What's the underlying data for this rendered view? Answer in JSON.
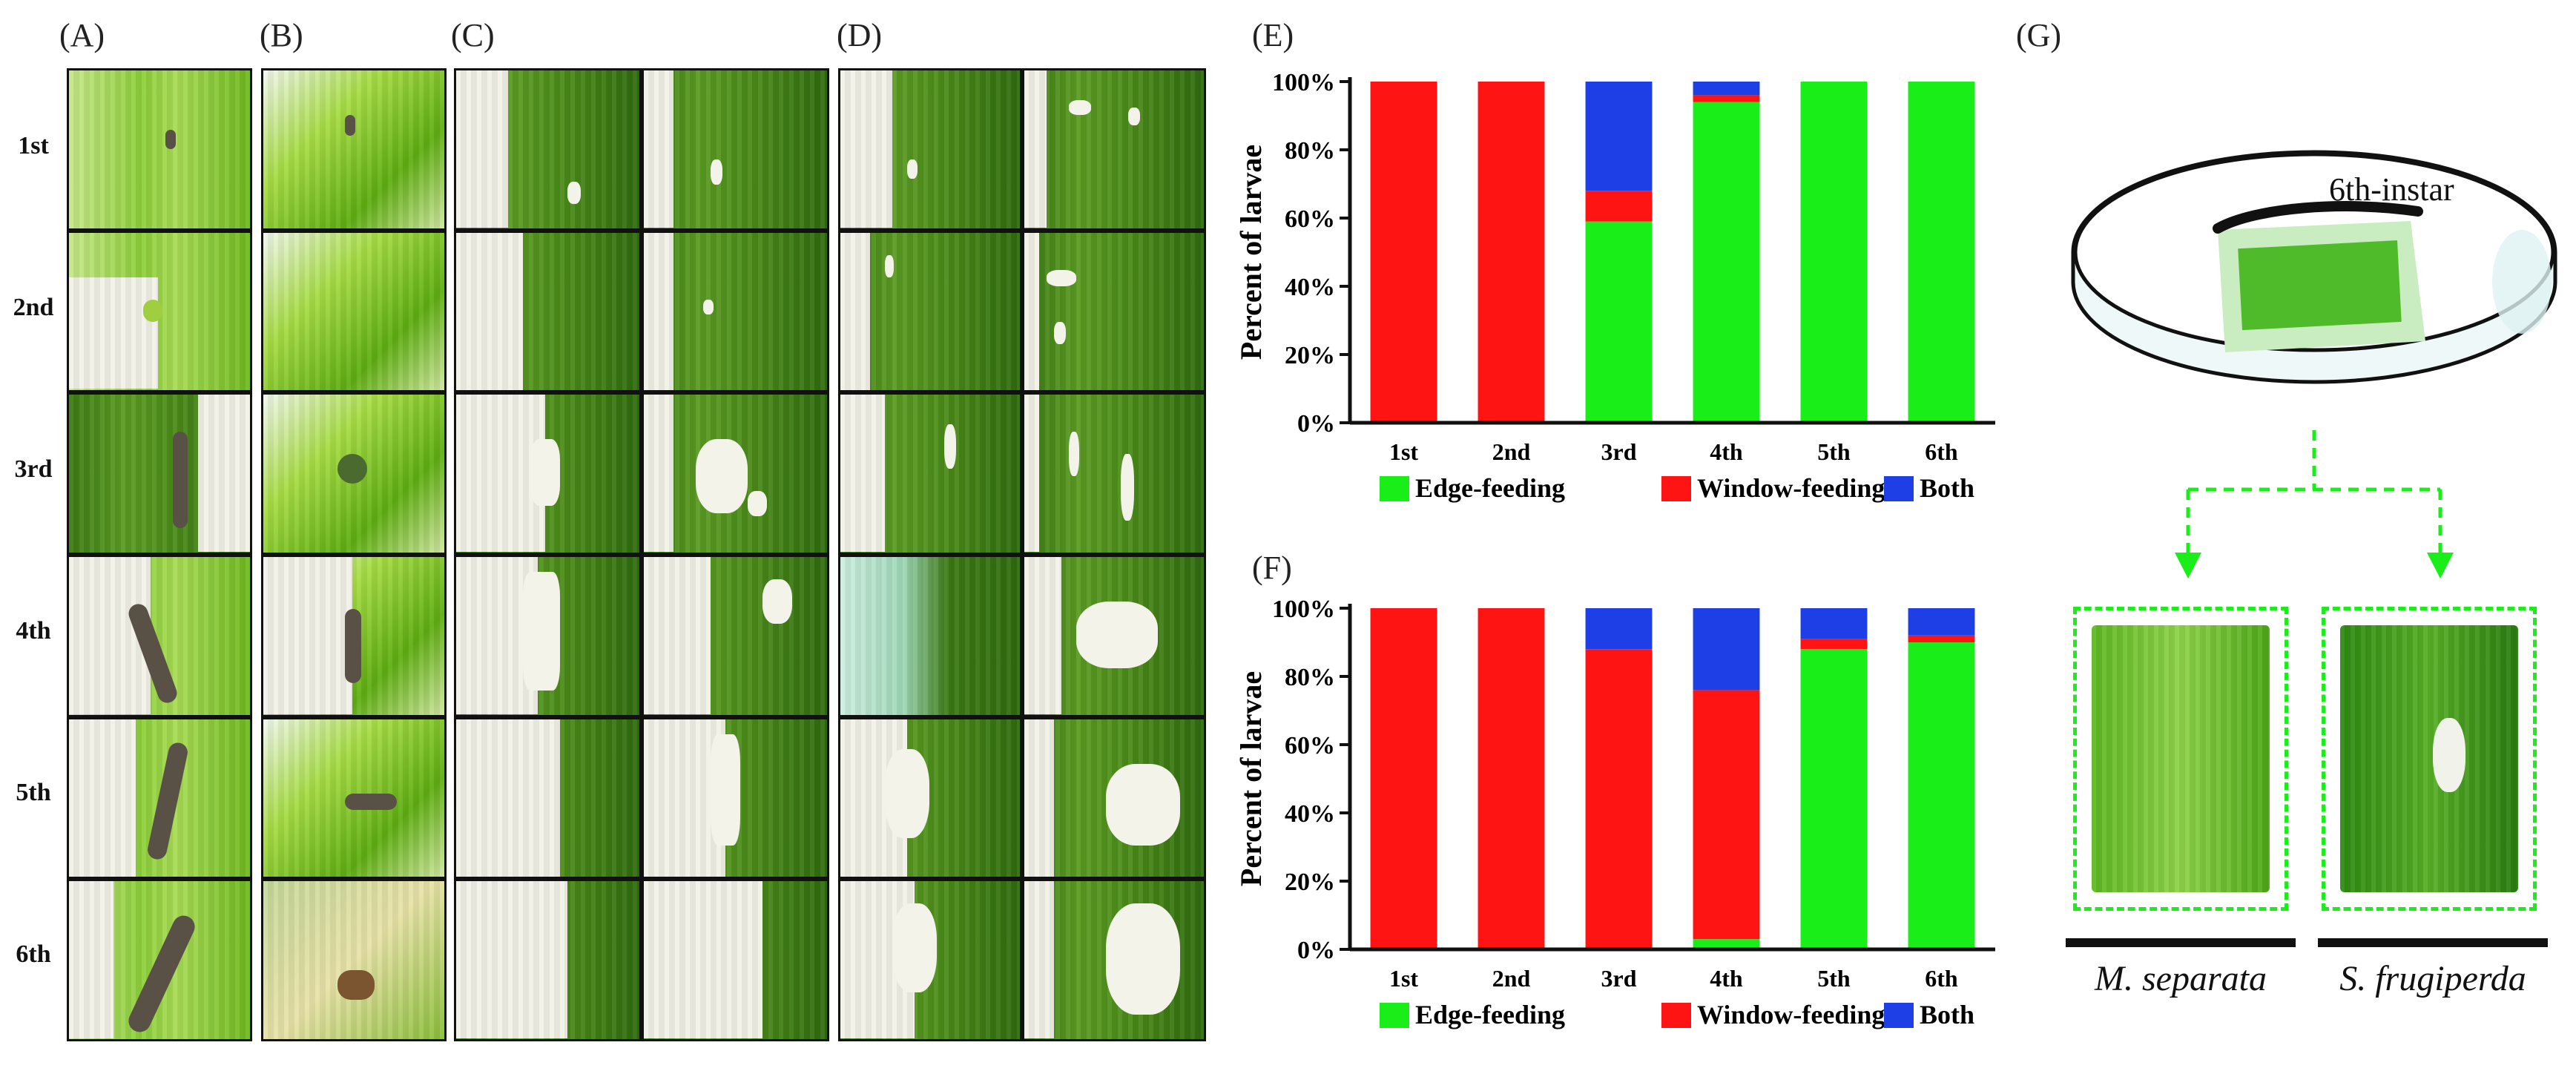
{
  "panel_labels": {
    "A": "(A)",
    "B": "(B)",
    "C": "(C)",
    "D": "(D)",
    "E": "(E)",
    "F": "(F)",
    "G": "(G)"
  },
  "row_labels": [
    "1st",
    "2nd",
    "3rd",
    "4th",
    "5th",
    "6th"
  ],
  "colors": {
    "edge": "#19ee19",
    "window": "#ff1414",
    "both": "#1f3fe6"
  },
  "legend": [
    "Edge-feeding",
    "Window-feeding",
    "Both"
  ],
  "chart_data": [
    {
      "id": "E",
      "type": "bar",
      "stacked": true,
      "title": "",
      "ylabel": "Percent of larvae",
      "ylim": [
        0,
        100
      ],
      "yticks": [
        "0%",
        "20%",
        "40%",
        "60%",
        "80%",
        "100%"
      ],
      "categories": [
        "1st",
        "2nd",
        "3rd",
        "4th",
        "5th",
        "6th"
      ],
      "series": [
        {
          "name": "Edge-feeding",
          "values": [
            0,
            0,
            59,
            94,
            100,
            100
          ]
        },
        {
          "name": "Window-feeding",
          "values": [
            100,
            100,
            9,
            2,
            0,
            0
          ]
        },
        {
          "name": "Both",
          "values": [
            0,
            0,
            32,
            4,
            0,
            0
          ]
        }
      ],
      "legend_position": "bottom"
    },
    {
      "id": "F",
      "type": "bar",
      "stacked": true,
      "title": "",
      "ylabel": "Percent of larvae",
      "ylim": [
        0,
        100
      ],
      "yticks": [
        "0%",
        "20%",
        "40%",
        "60%",
        "80%",
        "100%"
      ],
      "categories": [
        "1st",
        "2nd",
        "3rd",
        "4th",
        "5th",
        "6th"
      ],
      "series": [
        {
          "name": "Edge-feeding",
          "values": [
            0,
            0,
            0,
            3,
            88,
            90
          ]
        },
        {
          "name": "Window-feeding",
          "values": [
            100,
            100,
            88,
            73,
            3,
            2
          ]
        },
        {
          "name": "Both",
          "values": [
            0,
            0,
            12,
            24,
            9,
            8
          ]
        }
      ],
      "legend_position": "bottom"
    }
  ],
  "diagram": {
    "instar_label": "6th-instar",
    "species": [
      "M. separata",
      "S. frugiperda"
    ]
  }
}
